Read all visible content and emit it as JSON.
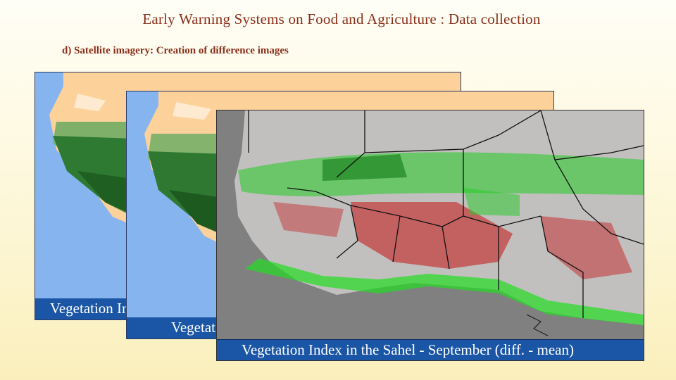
{
  "slide": {
    "title": "Early Warning Systems on Food and Agriculture : Data collection",
    "subtitle": "d) Satellite imagery: Creation of difference images"
  },
  "images": [
    {
      "name": "vegetation-map-back",
      "caption": "Vegetation Index in the Sahel - September (mean)",
      "colors": {
        "ocean": "#86b4ee",
        "desert": "#fdd19a",
        "forest": "#1f5f22",
        "savanna": "#5f9a4c"
      }
    },
    {
      "name": "vegetation-map-middle",
      "caption": "Vegetation Index in the Sahel - September (current)",
      "colors": {
        "ocean": "#86b4ee",
        "desert": "#fdd19a",
        "forest": "#1f5f22",
        "savanna": "#5f9a4c"
      }
    },
    {
      "name": "difference-map-front",
      "caption": "Vegetation Index in the Sahel - September (diff. - mean)",
      "colors": {
        "ocean": "#808080",
        "land": "#c2bfbf",
        "positive": "#22dd22",
        "negative": "#c41414",
        "borders": "#111111"
      }
    }
  ]
}
